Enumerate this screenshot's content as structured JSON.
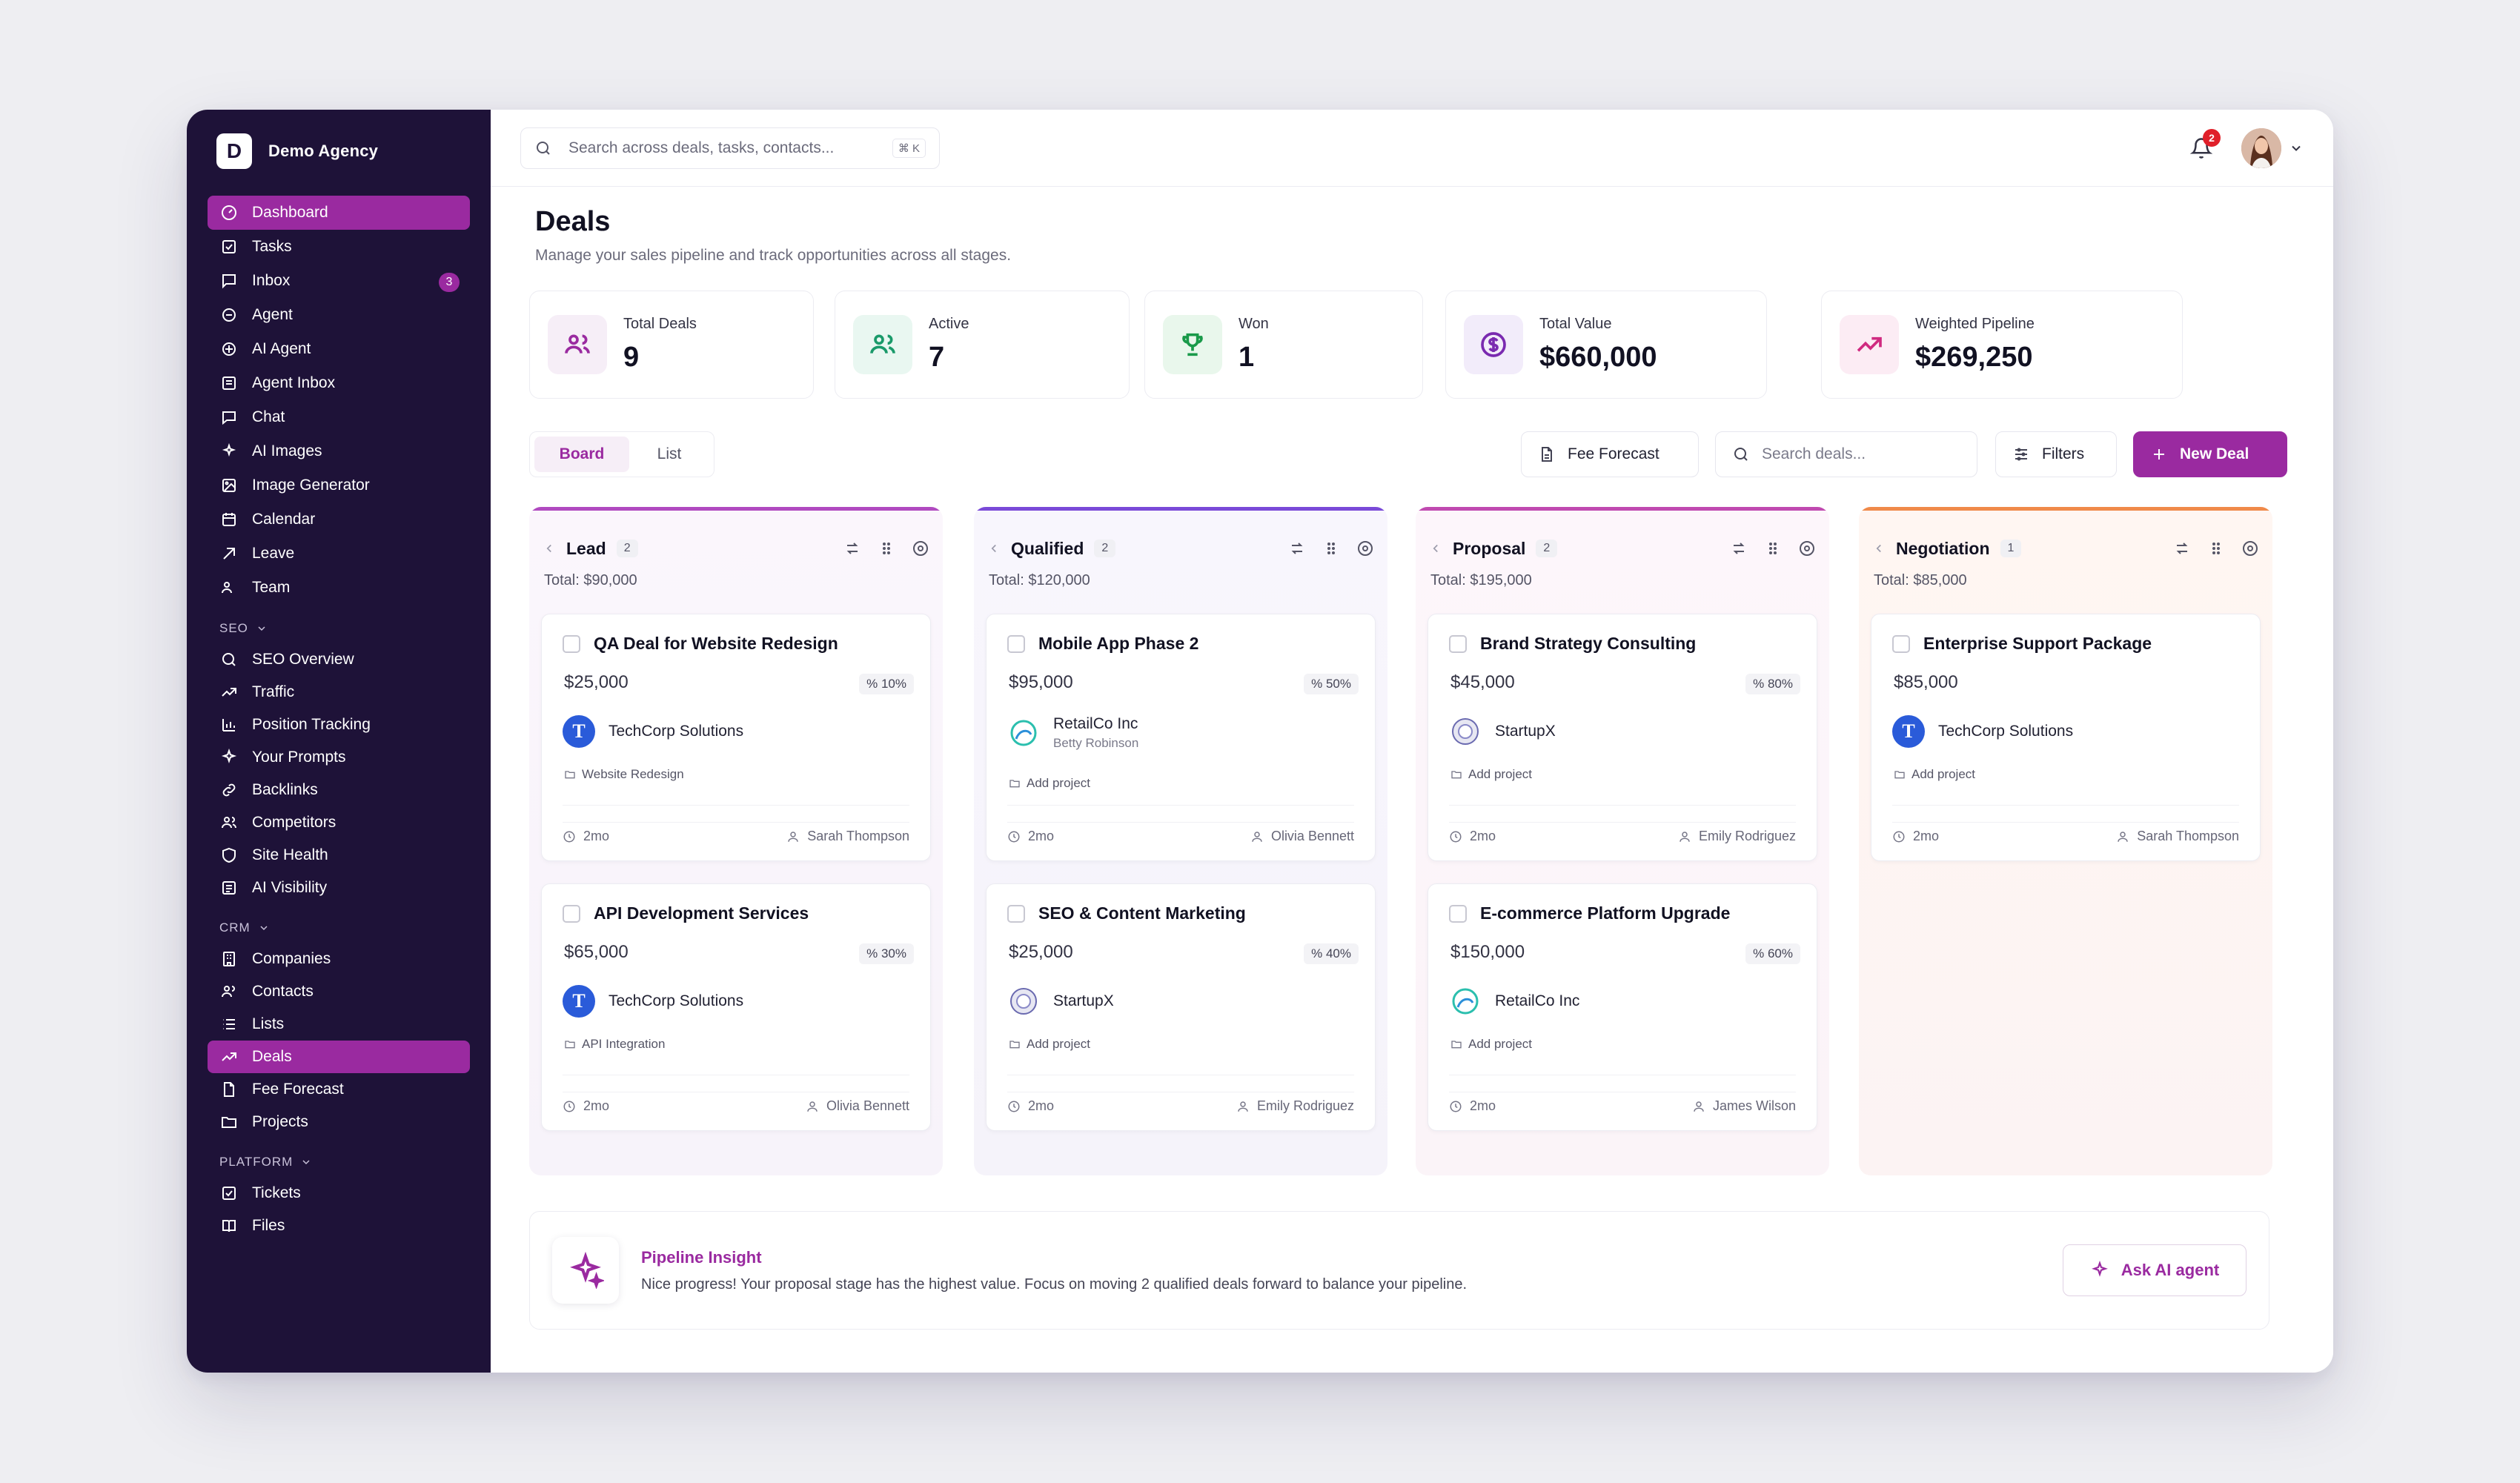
{
  "brand": {
    "logo_letter": "D",
    "name": "Demo Agency"
  },
  "sidebar": {
    "main_items": [
      {
        "label": "Dashboard",
        "icon": "dashboard-icon",
        "active": true
      },
      {
        "label": "Tasks",
        "icon": "tasks-icon"
      },
      {
        "label": "Inbox",
        "icon": "inbox-icon",
        "badge": "3"
      },
      {
        "label": "Agent",
        "icon": "agent-icon"
      },
      {
        "label": "AI Agent",
        "icon": "ai-agent-icon"
      },
      {
        "label": "Agent Inbox",
        "icon": "agent-inbox-icon"
      },
      {
        "label": "Chat",
        "icon": "chat-icon"
      },
      {
        "label": "AI Images",
        "icon": "ai-images-icon"
      },
      {
        "label": "Image Generator",
        "icon": "image-generator-icon"
      },
      {
        "label": "Calendar",
        "icon": "calendar-icon"
      },
      {
        "label": "Leave",
        "icon": "leave-icon"
      },
      {
        "label": "Team",
        "icon": "team-icon"
      }
    ],
    "seo_label": "SEO",
    "seo_items": [
      {
        "label": "SEO Overview",
        "icon": "search-icon"
      },
      {
        "label": "Traffic",
        "icon": "trend-icon"
      },
      {
        "label": "Position Tracking",
        "icon": "bar-chart-icon"
      },
      {
        "label": "Your Prompts",
        "icon": "sparkle-icon"
      },
      {
        "label": "Backlinks",
        "icon": "link-icon"
      },
      {
        "label": "Competitors",
        "icon": "users-icon"
      },
      {
        "label": "Site Health",
        "icon": "shield-icon"
      },
      {
        "label": "AI Visibility",
        "icon": "visibility-icon"
      }
    ],
    "crm_label": "CRM",
    "crm_items": [
      {
        "label": "Companies",
        "icon": "building-icon"
      },
      {
        "label": "Contacts",
        "icon": "contacts-icon"
      },
      {
        "label": "Lists",
        "icon": "list-icon"
      },
      {
        "label": "Deals",
        "icon": "deals-icon",
        "active": true
      },
      {
        "label": "Fee Forecast",
        "icon": "document-icon"
      },
      {
        "label": "Projects",
        "icon": "folder-icon"
      }
    ],
    "platform_label": "PLATFORM",
    "platform_items": [
      {
        "label": "Tickets",
        "icon": "ticket-icon"
      },
      {
        "label": "Files",
        "icon": "book-icon"
      }
    ]
  },
  "topbar": {
    "search_placeholder": "Search across deals, tasks, contacts...",
    "search_shortcut": "⌘ K",
    "notification_count": "2"
  },
  "page": {
    "title": "Deals",
    "subtitle": "Manage your sales pipeline and track opportunities across all stages."
  },
  "stats": [
    {
      "label": "Total Deals",
      "value": "9",
      "icon": "users-icon",
      "color": "#9a2aa0",
      "bg": "#f6eef7"
    },
    {
      "label": "Active",
      "value": "7",
      "icon": "users-icon",
      "color": "#1a9a6a",
      "bg": "#e9f7f1"
    },
    {
      "label": "Won",
      "value": "1",
      "icon": "trophy-icon",
      "color": "#1a9a4a",
      "bg": "#e9f7ec"
    },
    {
      "label": "Total Value",
      "value": "$660,000",
      "icon": "dollar-icon",
      "color": "#7a2ab0",
      "bg": "#f2ecfa"
    },
    {
      "label": "Weighted Pipeline",
      "value": "$269,250",
      "icon": "trend-up-icon",
      "color": "#d02a80",
      "bg": "#fcecf4"
    }
  ],
  "toolbar": {
    "board_label": "Board",
    "list_label": "List",
    "fee_forecast_label": "Fee Forecast",
    "search_placeholder": "Search deals...",
    "filters_label": "Filters",
    "new_deal_label": "New Deal"
  },
  "columns": [
    {
      "name": "Lead",
      "count": "2",
      "total": "Total: $90,000",
      "accent": "#b04ac0",
      "cards": [
        {
          "title": "QA Deal for Website Redesign",
          "value": "$25,000",
          "prob": "10%",
          "company": "TechCorp Solutions",
          "logo": "T",
          "contact": "",
          "project": "Website Redesign",
          "age": "2mo",
          "owner": "Sarah Thompson"
        },
        {
          "title": "API Development Services",
          "value": "$65,000",
          "prob": "30%",
          "company": "TechCorp Solutions",
          "logo": "T",
          "contact": "",
          "project": "API Integration",
          "age": "2mo",
          "owner": "Olivia Bennett"
        }
      ]
    },
    {
      "name": "Qualified",
      "count": "2",
      "total": "Total: $120,000",
      "accent": "#7a4ad8",
      "cards": [
        {
          "title": "Mobile App Phase 2",
          "value": "$95,000",
          "prob": "50%",
          "company": "RetailCo Inc",
          "logo": "swirl",
          "contact": "Betty Robinson",
          "project": "Add project",
          "age": "2mo",
          "owner": "Olivia Bennett"
        },
        {
          "title": "SEO & Content Marketing",
          "value": "$25,000",
          "prob": "40%",
          "company": "StartupX",
          "logo": "sx",
          "contact": "",
          "project": "Add project",
          "age": "2mo",
          "owner": "Emily Rodriguez"
        }
      ]
    },
    {
      "name": "Proposal",
      "count": "2",
      "total": "Total: $195,000",
      "accent": "#c04ab0",
      "cards": [
        {
          "title": "Brand Strategy Consulting",
          "value": "$45,000",
          "prob": "80%",
          "company": "StartupX",
          "logo": "sx",
          "contact": "",
          "project": "Add project",
          "age": "2mo",
          "owner": "Emily Rodriguez"
        },
        {
          "title": "E-commerce Platform Upgrade",
          "value": "$150,000",
          "prob": "60%",
          "company": "RetailCo Inc",
          "logo": "swirl",
          "contact": "",
          "project": "Add project",
          "age": "2mo",
          "owner": "James Wilson"
        }
      ]
    },
    {
      "name": "Negotiation",
      "count": "1",
      "total": "Total: $85,000",
      "accent": "#f08a4a",
      "cards": [
        {
          "title": "Enterprise Support Package",
          "value": "$85,000",
          "prob": "",
          "company": "TechCorp Solutions",
          "logo": "T",
          "contact": "",
          "project": "Add project",
          "age": "2mo",
          "owner": "Sarah Thompson"
        }
      ]
    }
  ],
  "insight": {
    "title": "Pipeline Insight",
    "text": "Nice progress! Your proposal stage has the highest value. Focus on moving 2 qualified deals forward to balance your pipeline.",
    "button_label": "Ask AI agent"
  }
}
